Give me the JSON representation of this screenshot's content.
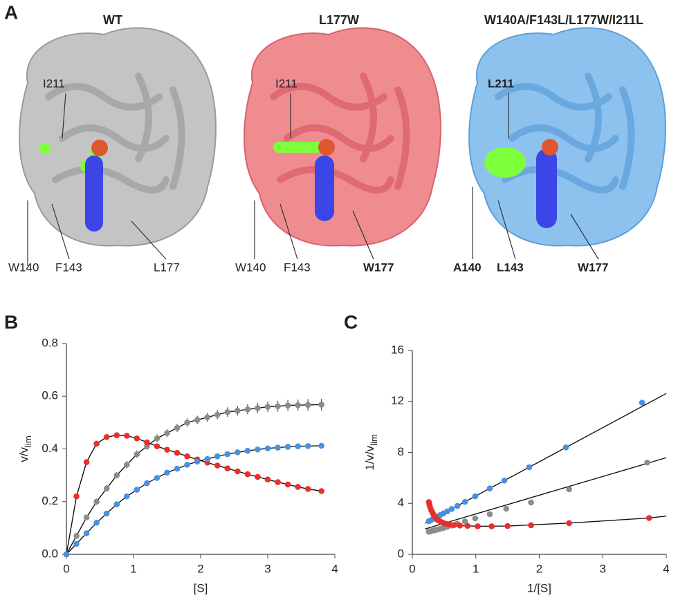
{
  "panel_a": {
    "label": "A",
    "structures": [
      {
        "title": "WT",
        "labels": [
          "I211",
          "W140",
          "F143",
          "L177"
        ]
      },
      {
        "title": "L177W",
        "labels": [
          "I211",
          "W140",
          "F143",
          "W177"
        ]
      },
      {
        "title": "W140A/F143L/L177W/I211L",
        "labels": [
          "L211",
          "A140",
          "L143",
          "W177"
        ]
      }
    ]
  },
  "chart_data": [
    {
      "panel_label": "B",
      "type": "line",
      "xlabel": "[S]",
      "ylabel": "v/v",
      "ylabel_sub": "lim",
      "xlim": [
        0,
        4
      ],
      "xticks": [
        0,
        1,
        2,
        3,
        4
      ],
      "ylim": [
        0,
        0.8
      ],
      "yticks": [
        {
          "value": 0,
          "label": "0.0"
        },
        0.2,
        0.4,
        0.6,
        0.8
      ],
      "line_color": "#111111",
      "x": [
        0,
        0.15,
        0.3,
        0.45,
        0.6,
        0.75,
        0.9,
        1.05,
        1.2,
        1.35,
        1.5,
        1.65,
        1.8,
        1.95,
        2.1,
        2.25,
        2.4,
        2.55,
        2.7,
        2.85,
        3.0,
        3.15,
        3.3,
        3.45,
        3.6,
        3.8
      ],
      "series": [
        {
          "color": "#8c8c8c",
          "values": [
            0,
            0.07,
            0.14,
            0.2,
            0.25,
            0.3,
            0.34,
            0.38,
            0.41,
            0.44,
            0.46,
            0.48,
            0.5,
            0.51,
            0.52,
            0.53,
            0.54,
            0.545,
            0.55,
            0.555,
            0.56,
            0.562,
            0.565,
            0.566,
            0.567,
            0.568
          ],
          "errors": [
            0,
            0.01,
            0.01,
            0.012,
            0.012,
            0.012,
            0.014,
            0.014,
            0.014,
            0.015,
            0.015,
            0.015,
            0.016,
            0.016,
            0.017,
            0.017,
            0.018,
            0.018,
            0.019,
            0.019,
            0.02,
            0.02,
            0.021,
            0.021,
            0.022,
            0.022
          ]
        },
        {
          "color": "#e8302a",
          "values": [
            0,
            0.22,
            0.35,
            0.42,
            0.445,
            0.452,
            0.45,
            0.44,
            0.425,
            0.41,
            0.397,
            0.385,
            0.372,
            0.36,
            0.348,
            0.337,
            0.326,
            0.315,
            0.304,
            0.294,
            0.284,
            0.274,
            0.265,
            0.256,
            0.248,
            0.24
          ]
        },
        {
          "color": "#4a90e0",
          "values": [
            0,
            0.04,
            0.08,
            0.12,
            0.155,
            0.19,
            0.22,
            0.245,
            0.27,
            0.29,
            0.31,
            0.325,
            0.34,
            0.352,
            0.362,
            0.372,
            0.38,
            0.387,
            0.393,
            0.398,
            0.402,
            0.405,
            0.408,
            0.41,
            0.411,
            0.412
          ]
        }
      ]
    },
    {
      "panel_label": "C",
      "type": "scatter",
      "xlabel": "1/[S]",
      "ylabel": "1/v/v",
      "ylabel_sub": "lim",
      "xlim": [
        0,
        4
      ],
      "xticks": [
        0,
        1,
        2,
        3,
        4
      ],
      "ylim": [
        0,
        16
      ],
      "yticks": [
        0,
        4,
        8,
        12,
        16
      ],
      "line_color": "#111111",
      "fits": [
        {
          "x": [
            0.2,
            4
          ],
          "values": [
            2.44,
            12.62
          ]
        },
        {
          "x": [
            0.2,
            4
          ],
          "values": [
            1.99,
            7.58
          ]
        },
        {
          "x": [
            0.26,
            0.3,
            0.4,
            0.53,
            0.75,
            1.03,
            1.5,
            2.47,
            3.73,
            4
          ],
          "values": [
            4.1,
            3.45,
            2.7,
            2.4,
            2.26,
            2.2,
            2.22,
            2.45,
            2.85,
            3.0
          ]
        }
      ],
      "series": [
        {
          "color": "#4a90e0",
          "x": [
            0.26,
            0.28,
            0.3,
            0.33,
            0.36,
            0.4,
            0.44,
            0.49,
            0.55,
            0.62,
            0.71,
            0.83,
            0.99,
            1.22,
            1.45,
            1.84,
            2.42,
            3.62
          ],
          "values": [
            2.6,
            2.65,
            2.7,
            2.78,
            2.86,
            2.97,
            3.08,
            3.21,
            3.37,
            3.56,
            3.8,
            4.12,
            4.55,
            5.17,
            5.79,
            6.83,
            8.39,
            11.9
          ]
        },
        {
          "color": "#8c8c8c",
          "x": [
            0.26,
            0.28,
            0.3,
            0.33,
            0.36,
            0.4,
            0.44,
            0.49,
            0.55,
            0.62,
            0.71,
            0.83,
            0.99,
            1.22,
            1.48,
            1.87,
            2.47,
            3.7
          ],
          "values": [
            1.78,
            1.8,
            1.83,
            1.87,
            1.9,
            1.95,
            2.0,
            2.07,
            2.16,
            2.26,
            2.4,
            2.58,
            2.82,
            3.15,
            3.58,
            4.07,
            5.1,
            7.2
          ]
        },
        {
          "color": "#e8302a",
          "x": [
            0.26,
            0.27,
            0.28,
            0.3,
            0.32,
            0.34,
            0.37,
            0.4,
            0.44,
            0.48,
            0.53,
            0.59,
            0.66,
            0.75,
            0.87,
            1.03,
            1.25,
            1.5,
            1.87,
            2.47,
            3.73
          ],
          "values": [
            4.1,
            3.9,
            3.7,
            3.45,
            3.25,
            3.05,
            2.85,
            2.7,
            2.58,
            2.48,
            2.4,
            2.34,
            2.3,
            2.26,
            2.23,
            2.2,
            2.2,
            2.22,
            2.28,
            2.45,
            2.85
          ]
        }
      ]
    }
  ]
}
